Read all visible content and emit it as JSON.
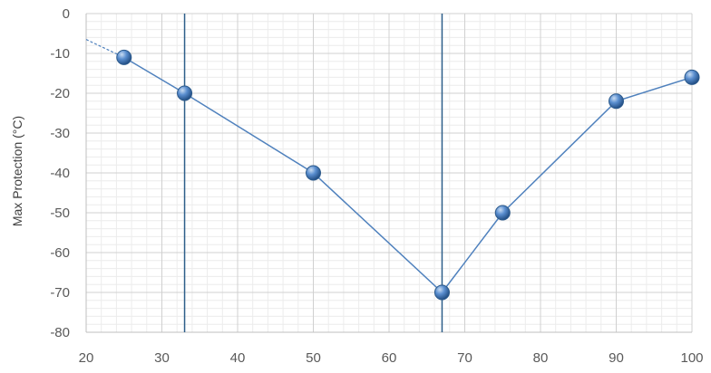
{
  "chart_data": {
    "type": "scatter",
    "title": "",
    "xlabel": "",
    "ylabel": "Max Protection (°C)",
    "xlim": [
      20,
      100
    ],
    "ylim": [
      -80,
      0
    ],
    "xticks": [
      "20",
      "30",
      "40",
      "50",
      "60",
      "70",
      "80",
      "90",
      "100"
    ],
    "yticks": [
      "0",
      "-10",
      "-20",
      "-30",
      "-40",
      "-50",
      "-60",
      "-70",
      "-80"
    ],
    "grid": true,
    "minor_grid": true,
    "legend": "none",
    "series": [
      {
        "x": [
          25,
          33,
          50,
          67,
          75,
          90,
          100
        ],
        "y": [
          -11,
          -20,
          -40,
          -70,
          -50,
          -22,
          -16
        ],
        "color": "#4f81bd"
      }
    ],
    "trendline": {
      "x": [
        20,
        25
      ],
      "y": [
        -6.5,
        -11
      ]
    },
    "reference_lines_x": [
      33,
      67
    ]
  }
}
